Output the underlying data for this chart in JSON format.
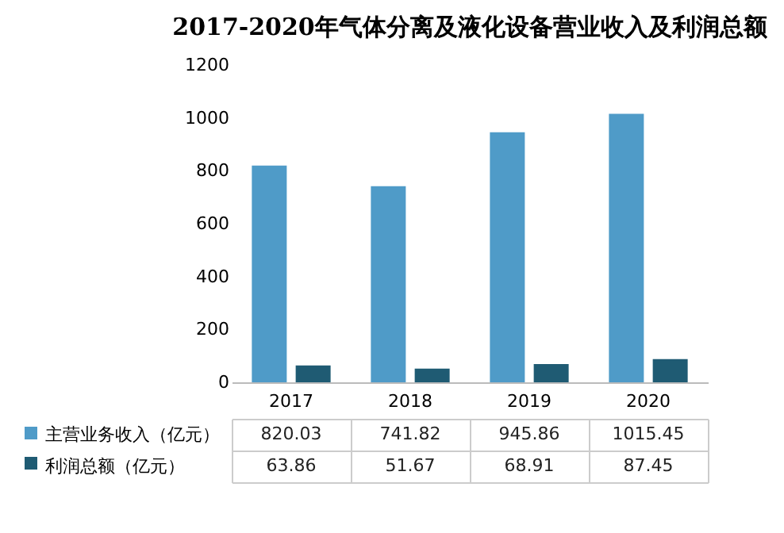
{
  "chart_data": {
    "type": "bar",
    "title": "2017-2020年气体分离及液化设备营业收入及利润总额",
    "categories": [
      "2017",
      "2018",
      "2019",
      "2020"
    ],
    "series": [
      {
        "name": "主营业务收入（亿元）",
        "color": "#4f9bc8",
        "values": [
          820.03,
          741.82,
          945.86,
          1015.45
        ]
      },
      {
        "name": "利润总额（亿元）",
        "color": "#1f5b73",
        "values": [
          63.86,
          51.67,
          68.91,
          87.45
        ]
      }
    ],
    "ylim": [
      0,
      1200
    ],
    "yticks": [
      0,
      200,
      400,
      600,
      800,
      {
        "value": 1000,
        "label": "1000"
      },
      {
        "value": 1200,
        "label": "1200"
      }
    ],
    "grid": false,
    "legend": "bottom",
    "data_labels": true
  }
}
